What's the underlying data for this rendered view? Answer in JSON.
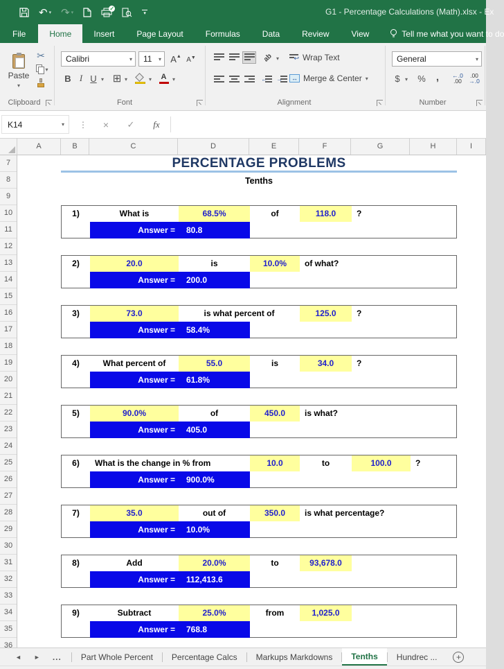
{
  "colors": {
    "excel_green": "#217346",
    "yellow_cell": "#ffff9e",
    "answer_bar_blue": "#0909e8",
    "value_text_blue": "#2121cc",
    "title_navy": "#1f3864",
    "title_underline": "#9cc2e5"
  },
  "window": {
    "title": "G1 - Percentage Calculations (Math).xlsx - Ex"
  },
  "tabs": [
    {
      "label": "File",
      "file": true,
      "active": false
    },
    {
      "label": "Home",
      "active": true
    },
    {
      "label": "Insert",
      "active": false
    },
    {
      "label": "Page Layout",
      "active": false
    },
    {
      "label": "Formulas",
      "active": false
    },
    {
      "label": "Data",
      "active": false
    },
    {
      "label": "Review",
      "active": false
    },
    {
      "label": "View",
      "active": false
    }
  ],
  "tell_me": "Tell me what you want to do",
  "ribbon": {
    "clipboard": {
      "label": "Clipboard",
      "paste": "Paste"
    },
    "font": {
      "label": "Font",
      "name": "Calibri",
      "size": "11",
      "bold": "B",
      "italic": "I",
      "underline": "U",
      "grow": "A",
      "shrink": "A"
    },
    "alignment": {
      "label": "Alignment",
      "wrap": "Wrap Text",
      "merge": "Merge & Center",
      "orient": "ab"
    },
    "number": {
      "label": "Number",
      "format": "General",
      "currency": "$",
      "percent": "%",
      "comma": ",",
      "inc_top": "←.0",
      "inc_bottom": ".00",
      "dec_top": ".00",
      "dec_bottom": "→.0"
    }
  },
  "formula_bar": {
    "cell_ref": "K14",
    "cancel": "×",
    "enter": "✓",
    "fx": "fx",
    "value": ""
  },
  "grid": {
    "columns": [
      {
        "label": "A",
        "w": 63
      },
      {
        "label": "B",
        "w": 41
      },
      {
        "label": "C",
        "w": 128
      },
      {
        "label": "D",
        "w": 103
      },
      {
        "label": "E",
        "w": 72
      },
      {
        "label": "F",
        "w": 75
      },
      {
        "label": "G",
        "w": 85
      },
      {
        "label": "H",
        "w": 68
      },
      {
        "label": "I",
        "w": 42
      }
    ],
    "rows": [
      "7",
      "8",
      "9",
      "10",
      "11",
      "12",
      "13",
      "14",
      "15",
      "16",
      "17",
      "18",
      "19",
      "20",
      "21",
      "22",
      "23",
      "24",
      "25",
      "26",
      "27",
      "28",
      "29",
      "30",
      "31",
      "32",
      "33",
      "34",
      "35",
      "36"
    ]
  },
  "sheet": {
    "title": "PERCENTAGE PROBLEMS",
    "subtitle": "Tenths",
    "answer_label": "Answer =",
    "problems": [
      {
        "num": "1)",
        "answer": "80.8",
        "cells": [
          {
            "col": "C",
            "text": "What is",
            "kind": "label",
            "align": "center"
          },
          {
            "col": "D",
            "text": "68.5%",
            "kind": "input"
          },
          {
            "col": "E",
            "text": "of",
            "kind": "label",
            "align": "center"
          },
          {
            "col": "F",
            "text": "118.0",
            "kind": "input"
          },
          {
            "col": "G",
            "text": "?",
            "kind": "label",
            "align": "left"
          }
        ]
      },
      {
        "num": "2)",
        "answer": "200.0",
        "cells": [
          {
            "col": "C",
            "text": "20.0",
            "kind": "input"
          },
          {
            "col": "D",
            "text": "is",
            "kind": "label",
            "align": "center"
          },
          {
            "col": "E",
            "text": "10.0%",
            "kind": "input"
          },
          {
            "col": "F",
            "text": "of what?",
            "kind": "label",
            "align": "left",
            "span": 2
          }
        ]
      },
      {
        "num": "3)",
        "answer": "58.4%",
        "cells": [
          {
            "col": "C",
            "text": "73.0",
            "kind": "input"
          },
          {
            "col": "D",
            "text": "is what percent of",
            "kind": "label",
            "align": "center",
            "span": 2
          },
          {
            "col": "F",
            "text": "125.0",
            "kind": "input"
          },
          {
            "col": "G",
            "text": "?",
            "kind": "label",
            "align": "left"
          }
        ]
      },
      {
        "num": "4)",
        "answer": "61.8%",
        "cells": [
          {
            "col": "C",
            "text": "What percent of",
            "kind": "label",
            "align": "center"
          },
          {
            "col": "D",
            "text": "55.0",
            "kind": "input"
          },
          {
            "col": "E",
            "text": "is",
            "kind": "label",
            "align": "center"
          },
          {
            "col": "F",
            "text": "34.0",
            "kind": "input"
          },
          {
            "col": "G",
            "text": "?",
            "kind": "label",
            "align": "left"
          }
        ]
      },
      {
        "num": "5)",
        "answer": "405.0",
        "cells": [
          {
            "col": "C",
            "text": "90.0%",
            "kind": "input"
          },
          {
            "col": "D",
            "text": "of",
            "kind": "label",
            "align": "center"
          },
          {
            "col": "E",
            "text": "450.0",
            "kind": "input"
          },
          {
            "col": "F",
            "text": "is what?",
            "kind": "label",
            "align": "left",
            "span": 2
          }
        ]
      },
      {
        "num": "6)",
        "answer": "900.0%",
        "cells": [
          {
            "col": "C",
            "text": "What is the change in % from",
            "kind": "label",
            "align": "left",
            "span": 2
          },
          {
            "col": "E",
            "text": "10.0",
            "kind": "input"
          },
          {
            "col": "F",
            "text": "to",
            "kind": "label",
            "align": "center"
          },
          {
            "col": "G",
            "text": "100.0",
            "kind": "input"
          },
          {
            "col": "H",
            "text": "?",
            "kind": "label",
            "align": "left"
          }
        ]
      },
      {
        "num": "7)",
        "answer": "10.0%",
        "cells": [
          {
            "col": "C",
            "text": "35.0",
            "kind": "input"
          },
          {
            "col": "D",
            "text": "out of",
            "kind": "label",
            "align": "center"
          },
          {
            "col": "E",
            "text": "350.0",
            "kind": "input"
          },
          {
            "col": "F",
            "text": "is what percentage?",
            "kind": "label",
            "align": "left",
            "span": 2
          }
        ]
      },
      {
        "num": "8)",
        "answer": "112,413.6",
        "cells": [
          {
            "col": "C",
            "text": "Add",
            "kind": "label",
            "align": "center"
          },
          {
            "col": "D",
            "text": "20.0%",
            "kind": "input"
          },
          {
            "col": "E",
            "text": "to",
            "kind": "label",
            "align": "center"
          },
          {
            "col": "F",
            "text": "93,678.0",
            "kind": "input"
          }
        ]
      },
      {
        "num": "9)",
        "answer": "768.8",
        "cells": [
          {
            "col": "C",
            "text": "Subtract",
            "kind": "label",
            "align": "center"
          },
          {
            "col": "D",
            "text": "25.0%",
            "kind": "input"
          },
          {
            "col": "E",
            "text": "from",
            "kind": "label",
            "align": "center"
          },
          {
            "col": "F",
            "text": "1,025.0",
            "kind": "input"
          }
        ]
      }
    ]
  },
  "sheet_tabs": {
    "prev": "◄",
    "next": "►",
    "overflow": "...",
    "tabs": [
      {
        "label": "Part Whole Percent",
        "active": false
      },
      {
        "label": "Percentage Calcs",
        "active": false
      },
      {
        "label": "Markups Markdowns",
        "active": false
      },
      {
        "label": "Tenths",
        "active": true
      },
      {
        "label": "Hundrec ...",
        "active": false
      }
    ],
    "add_label": "+"
  }
}
